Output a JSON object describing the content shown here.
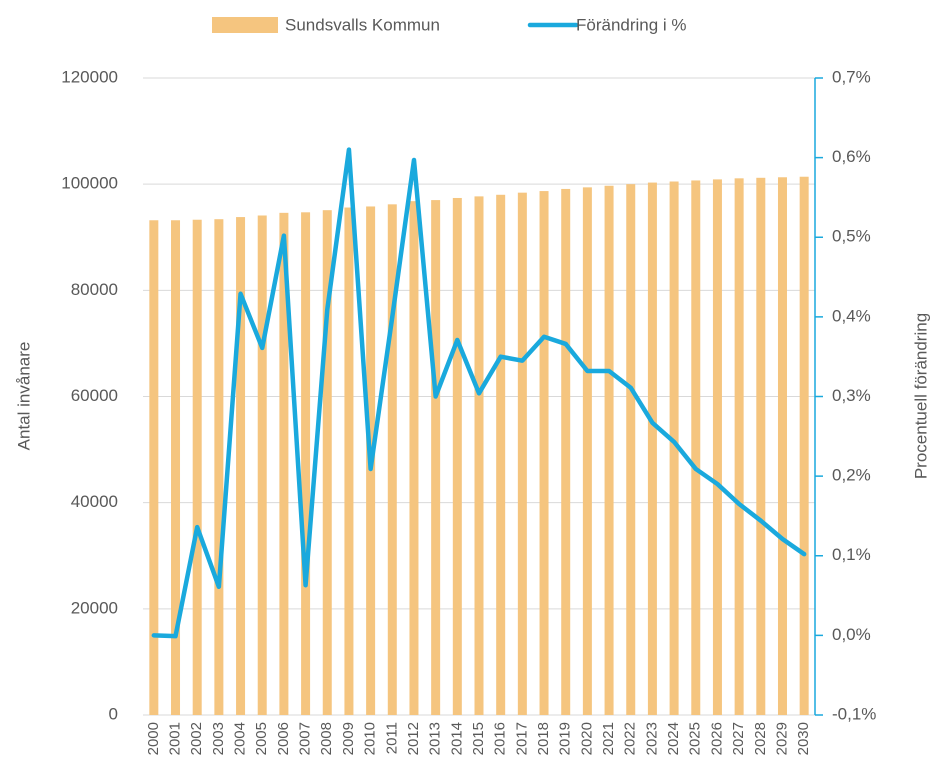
{
  "chart_data": {
    "type": "bar_line",
    "categories": [
      "2000",
      "2001",
      "2002",
      "2003",
      "2004",
      "2005",
      "2006",
      "2007",
      "2008",
      "2009",
      "2010",
      "2011",
      "2012",
      "2013",
      "2014",
      "2015",
      "2016",
      "2017",
      "2018",
      "2019",
      "2020",
      "2021",
      "2022",
      "2023",
      "2024",
      "2025",
      "2026",
      "2027",
      "2028",
      "2029",
      "2030"
    ],
    "series": [
      {
        "name": "Sundsvalls Kommun",
        "type": "bar",
        "color": "#f5c57f",
        "axis": "y",
        "values": [
          93200,
          93200,
          93300,
          93400,
          93800,
          94100,
          94600,
          94700,
          95100,
          95600,
          95800,
          96200,
          96800,
          97000,
          97400,
          97700,
          98000,
          98400,
          98700,
          99100,
          99400,
          99700,
          100000,
          100300,
          100500,
          100700,
          100900,
          101100,
          101200,
          101300,
          101400
        ]
      },
      {
        "name": "Förändring i %",
        "type": "line",
        "color": "#1aa9dd",
        "axis": "y2",
        "values": [
          0.0,
          -0.001,
          0.136,
          0.061,
          0.429,
          0.361,
          0.502,
          0.063,
          0.409,
          0.61,
          0.209,
          0.4,
          0.597,
          0.3,
          0.371,
          0.304,
          0.35,
          0.345,
          0.375,
          0.366,
          0.332,
          0.332,
          0.311,
          0.267,
          0.243,
          0.209,
          0.19,
          0.165,
          0.144,
          0.121,
          0.102
        ]
      }
    ],
    "ylabel": "Antal invånare",
    "y2label": "Procentuell förändring",
    "ylim": [
      0,
      120000
    ],
    "yticks": [
      0,
      20000,
      40000,
      60000,
      80000,
      100000,
      120000
    ],
    "y2lim": [
      -0.1,
      0.7
    ],
    "y2ticks": [
      {
        "value": -0.1,
        "label": "-0,1%"
      },
      {
        "value": 0.0,
        "label": "0,0%"
      },
      {
        "value": 0.1,
        "label": "0,1%"
      },
      {
        "value": 0.2,
        "label": "0,2%"
      },
      {
        "value": 0.3,
        "label": "0,3%"
      },
      {
        "value": 0.4,
        "label": "0,4%"
      },
      {
        "value": 0.5,
        "label": "0,5%"
      },
      {
        "value": 0.6,
        "label": "0,6%"
      },
      {
        "value": 0.7,
        "label": "0,7%"
      }
    ],
    "grid": true,
    "legend": "top"
  }
}
